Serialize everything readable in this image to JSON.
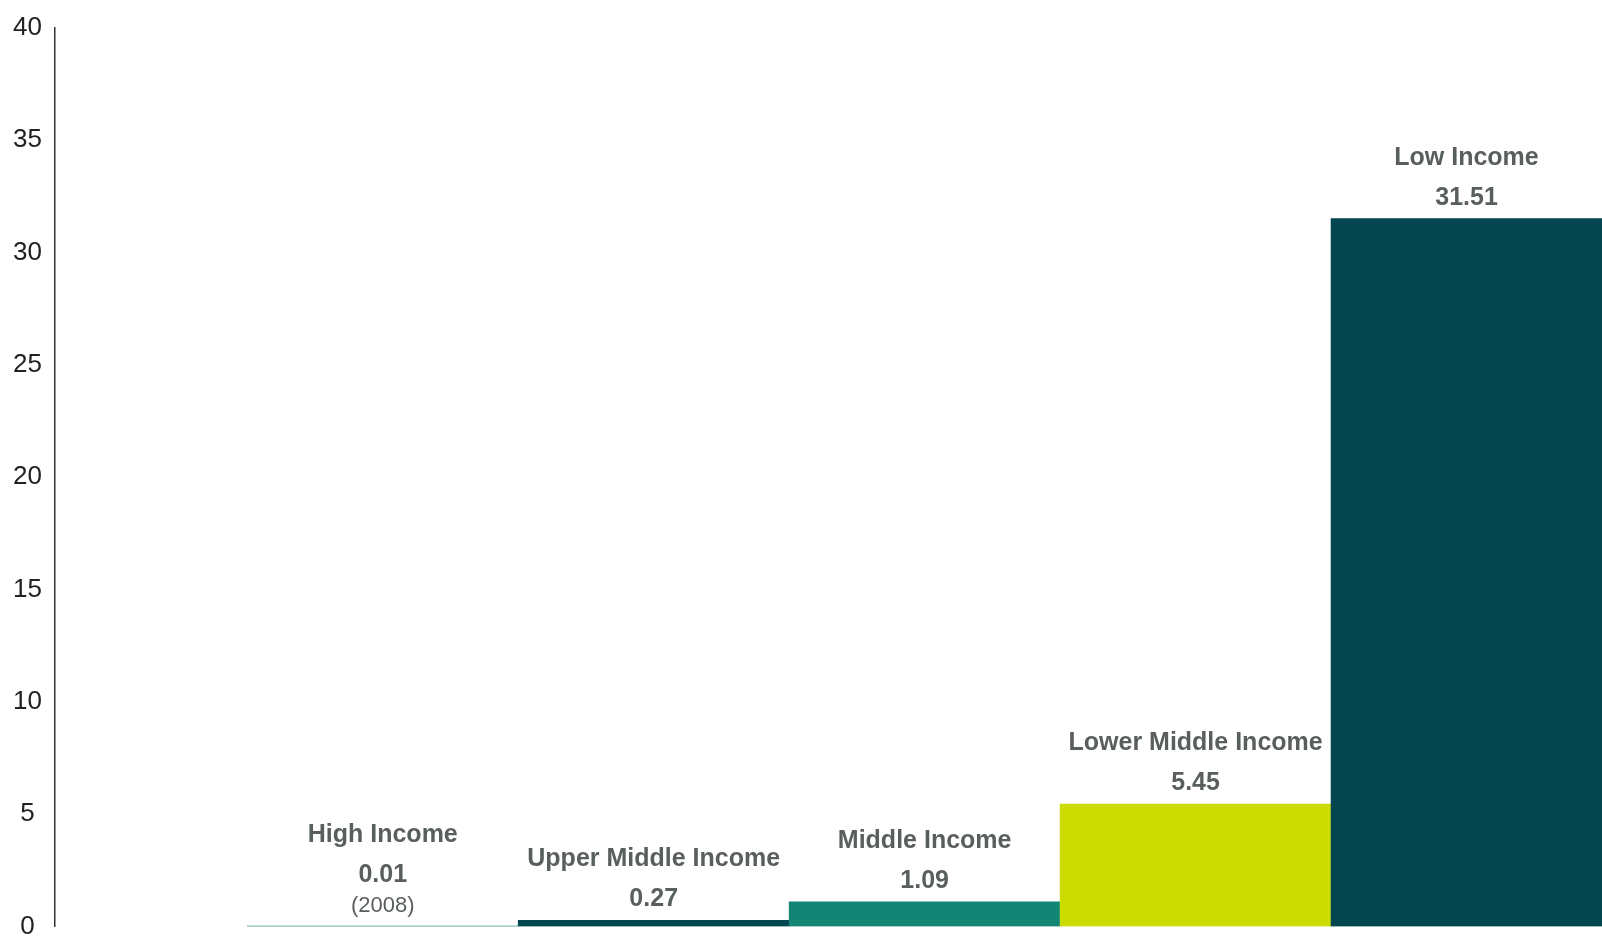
{
  "chart_data": {
    "type": "bar",
    "categories": [
      "High Income",
      "Upper Middle Income",
      "Middle Income",
      "Lower Middle Income",
      "Low Income"
    ],
    "values": [
      0.01,
      0.27,
      1.09,
      5.45,
      31.51
    ],
    "colors": [
      "#13876f",
      "#034751",
      "#128574",
      "#cddc00",
      "#03464f"
    ],
    "ylim": [
      0,
      40
    ],
    "yticks": [
      0,
      5,
      10,
      15,
      20,
      25,
      30,
      35,
      40
    ],
    "grid": false,
    "legend": false,
    "data_labels": true,
    "annotations": [
      {
        "text": "(2008)",
        "x": "High Income",
        "y": 0.01
      }
    ]
  }
}
